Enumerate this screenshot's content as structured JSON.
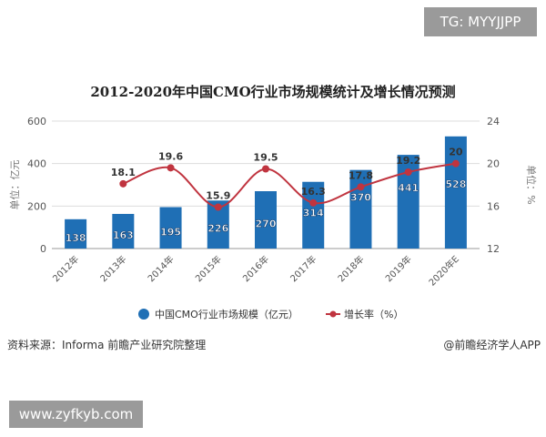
{
  "watermark_top": "TG: MYYJJPP",
  "watermark_bottom": "www.zyfkyb.com",
  "source": "资料来源：Informa 前瞻产业研究院整理",
  "credit": "@前瞻经济学人APP",
  "chart_data": {
    "type": "bar+line",
    "title": "2012-2020年中国CMO行业市场规模统计及增长情况预测",
    "categories": [
      "2012年",
      "2013年",
      "2014年",
      "2015年",
      "2016年",
      "2017年",
      "2018年",
      "2019年",
      "2020年E"
    ],
    "series": [
      {
        "name": "中国CMO行业市场规模（亿元）",
        "type": "bar",
        "axis": "left",
        "color": "#1f6fb5",
        "values": [
          138,
          163,
          195,
          226,
          270,
          314,
          370,
          441,
          528
        ]
      },
      {
        "name": "增长率（%）",
        "type": "line",
        "axis": "right",
        "color": "#c0343f",
        "values": [
          null,
          18.1,
          19.6,
          15.9,
          19.5,
          16.3,
          17.8,
          19.2,
          20
        ]
      }
    ],
    "ylabel": "单位：亿元",
    "ylabel_right": "单位：%",
    "ylim": [
      0,
      600
    ],
    "yticks": [
      0,
      200,
      400,
      600
    ],
    "ylim_right": [
      12,
      24
    ],
    "yticks_right": [
      12,
      16,
      20,
      24
    ],
    "grid": true,
    "legend_position": "bottom"
  }
}
